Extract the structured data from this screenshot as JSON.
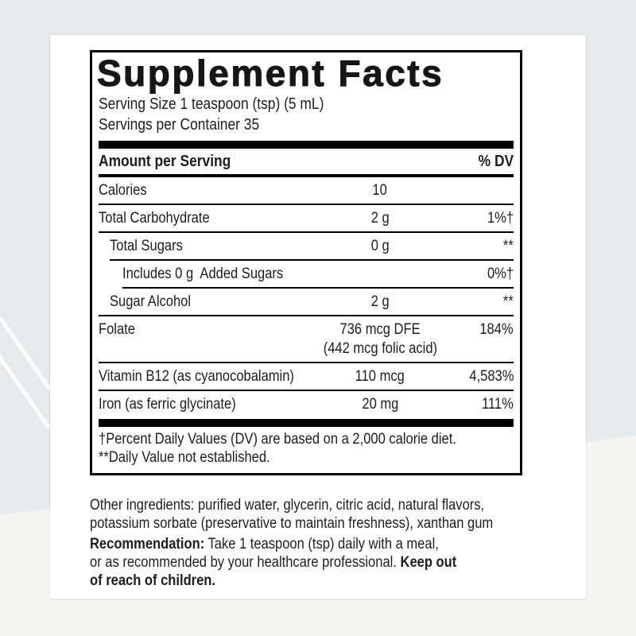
{
  "background": {
    "top_color": "#e5ebec",
    "bottom_color": "#f5f4f1",
    "streak_color": "#ffffff"
  },
  "label": {
    "title": "Supplement Facts",
    "serving_size": "Serving Size 1 teaspoon (tsp) (5 mL)",
    "servings_per_container": "Servings per Container 35",
    "header": {
      "amount_label": "Amount per Serving",
      "dv_label": "% DV"
    },
    "rows": [
      {
        "name": "Calories",
        "amount": "10",
        "dv": ""
      },
      {
        "name": "Total Carbohydrate",
        "amount": "2 g",
        "dv": "1%†"
      },
      {
        "name": "Total Sugars",
        "amount": "0 g",
        "dv": "**"
      },
      {
        "name": "Includes 0 g  Added Sugars",
        "amount": "",
        "dv": "0%†"
      },
      {
        "name": "Sugar Alcohol",
        "amount": "2 g",
        "dv": "**"
      },
      {
        "name": "Folate",
        "amount": "736 mcg DFE",
        "amount2": "(442 mcg folic acid)",
        "dv": "184%"
      },
      {
        "name": "Vitamin B12 (as cyanocobalamin)",
        "amount": "110 mcg",
        "dv": "4,583%"
      },
      {
        "name": "Iron (as ferric glycinate)",
        "amount": "20 mg",
        "dv": "111%"
      }
    ],
    "footnotes": [
      "†Percent Daily Values (DV) are based on a 2,000 calorie diet.",
      "**Daily Value not established."
    ],
    "other_ingredients": {
      "line1": "Other ingredients: purified water, glycerin, citric acid, natural flavors,",
      "line2": "potassium sorbate (preservative to maintain freshness), xanthan gum"
    },
    "recommendation": {
      "line1_label": "Recommendation:",
      "line1_text": " Take 1 teaspoon (tsp) daily with a meal,",
      "line2_text": "or as recommended by your healthcare professional. ",
      "line2_warning": "Keep out",
      "line3_warning": "of reach of children."
    }
  }
}
